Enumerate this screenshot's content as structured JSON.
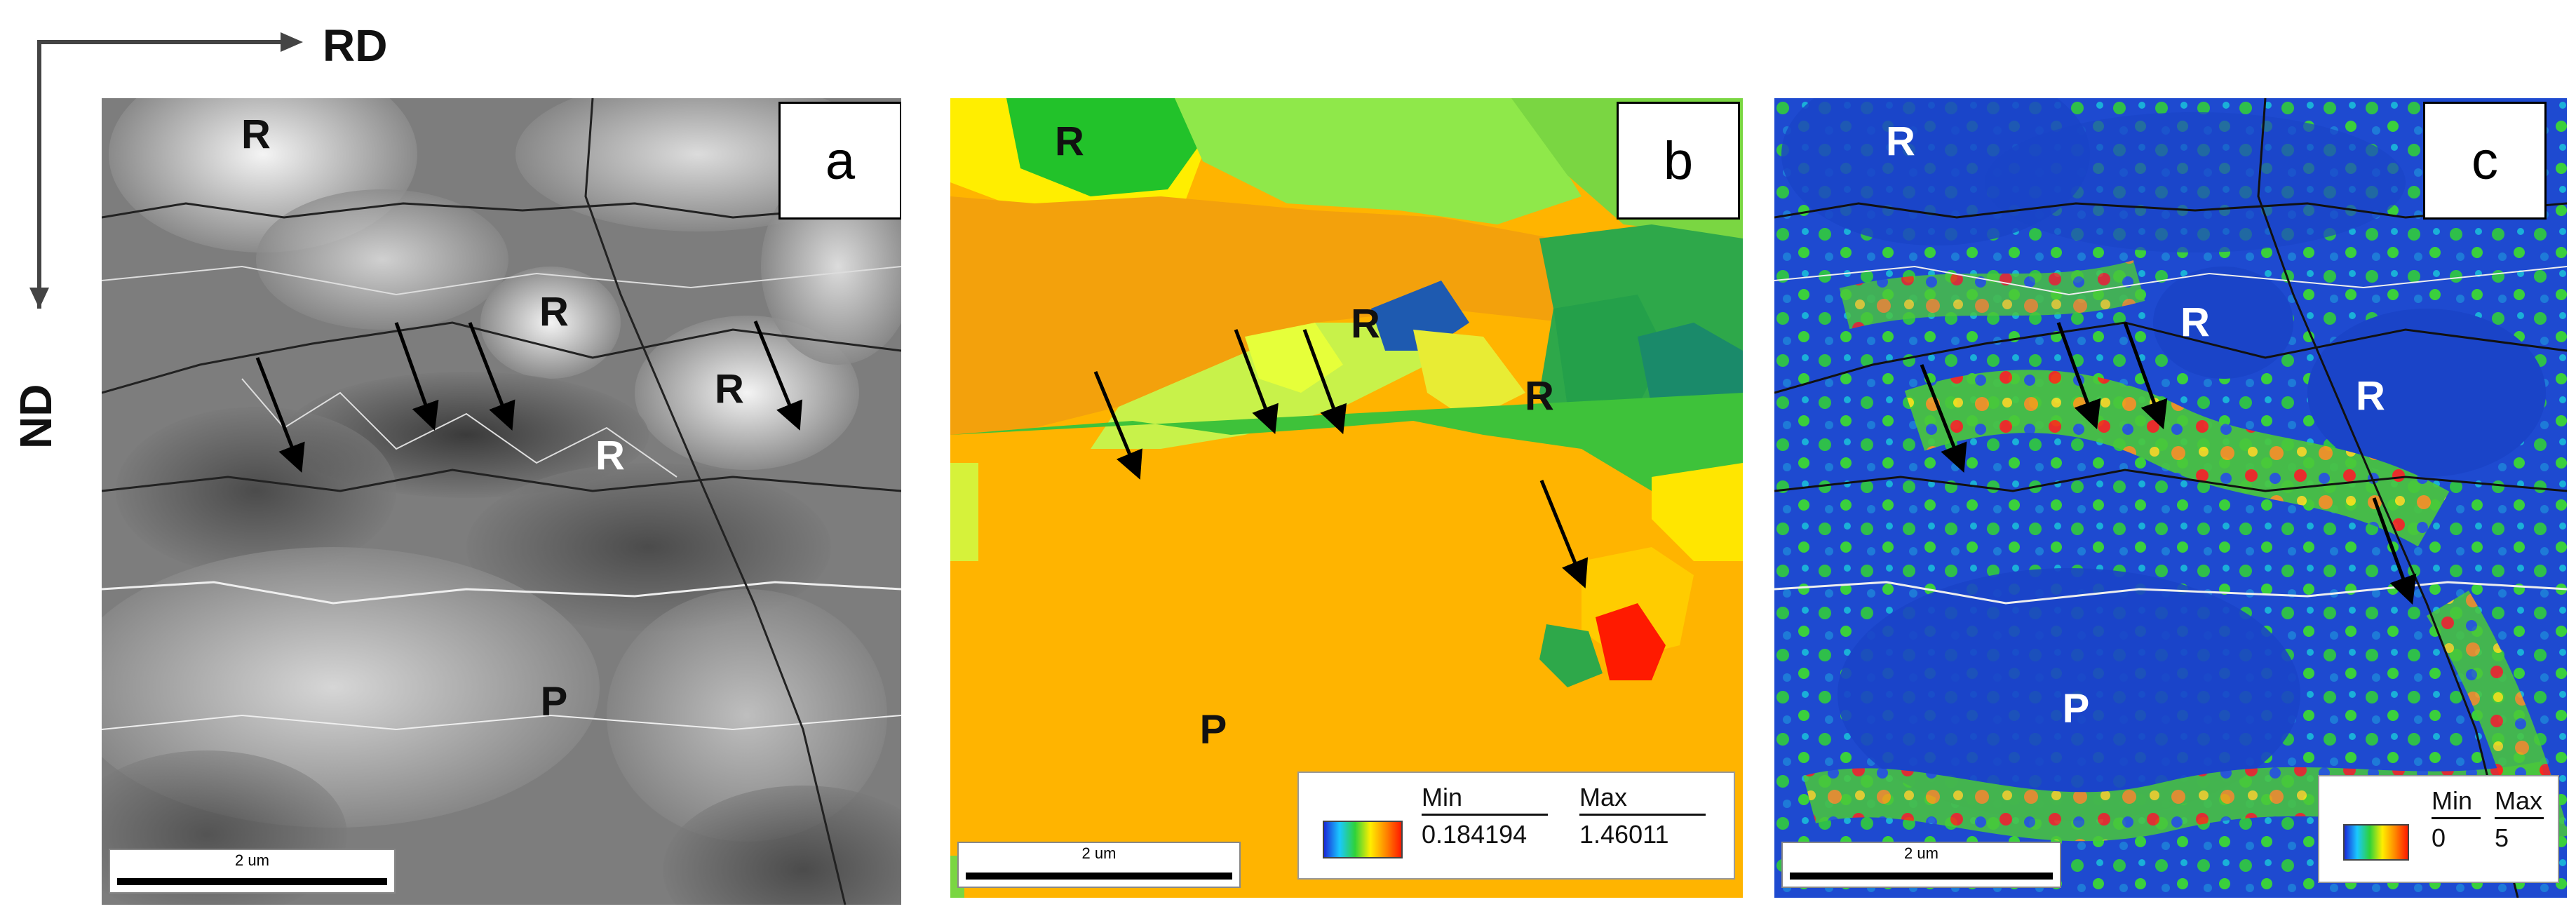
{
  "axes": {
    "horizontal": "RD",
    "vertical": "ND"
  },
  "panels": [
    {
      "tag": "a",
      "scale": "2 um",
      "regions": [
        {
          "label": "R"
        },
        {
          "label": "R"
        },
        {
          "label": "R"
        },
        {
          "label": "R"
        },
        {
          "label": "P"
        }
      ]
    },
    {
      "tag": "b",
      "scale": "2 um",
      "regions": [
        {
          "label": "R"
        },
        {
          "label": "R"
        },
        {
          "label": "R"
        },
        {
          "label": "P"
        }
      ],
      "legend": {
        "min_label": "Min",
        "max_label": "Max",
        "min_value": "0.184194",
        "max_value": "1.46011"
      }
    },
    {
      "tag": "c",
      "scale": "2 um",
      "regions": [
        {
          "label": "R"
        },
        {
          "label": "R"
        },
        {
          "label": "R"
        },
        {
          "label": "P"
        }
      ],
      "legend": {
        "min_label": "Min",
        "max_label": "Max",
        "min_value": "0",
        "max_value": "5"
      }
    }
  ],
  "colors": {
    "arrow": "#000000",
    "region_a": "#111111",
    "region_b": "#111111",
    "region_c": "#ffffff"
  }
}
